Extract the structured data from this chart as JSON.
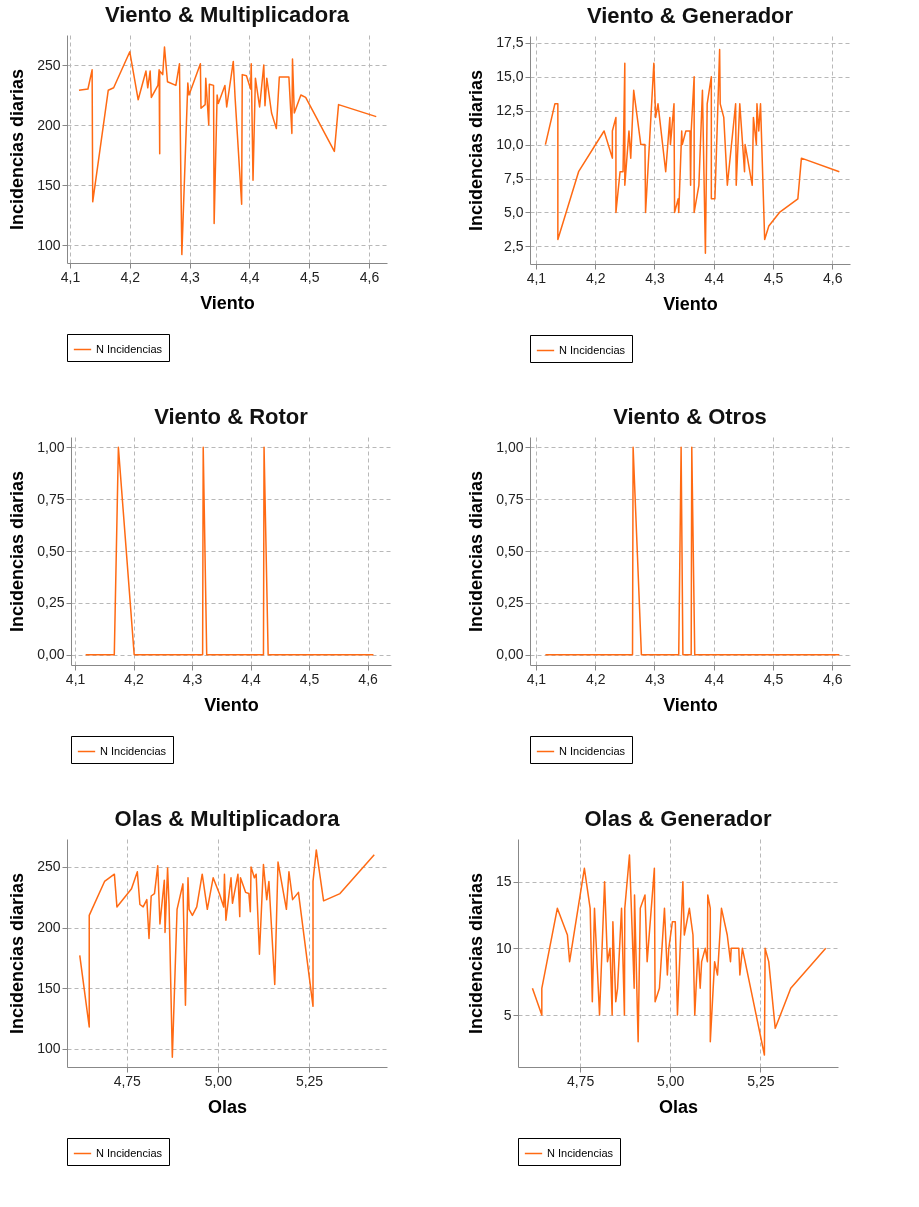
{
  "chart_data": [
    {
      "type": "line",
      "title": "Viento & Multiplicadora",
      "xlabel": "Viento",
      "ylabel": "Incidencias diarias",
      "grid": true,
      "legend": "bottom",
      "xlim": [
        4.095,
        4.63
      ],
      "ylim": [
        85,
        275
      ],
      "xticks": [
        {
          "value": 4.1,
          "label": "4,1"
        },
        {
          "value": 4.2,
          "label": "4,2"
        },
        {
          "value": 4.3,
          "label": "4,3"
        },
        {
          "value": 4.4,
          "label": "4,4"
        },
        {
          "value": 4.5,
          "label": "4,5"
        },
        {
          "value": 4.6,
          "label": "4,6"
        }
      ],
      "yticks": [
        100,
        150,
        200,
        250
      ],
      "x": [
        4.115,
        4.13,
        4.137,
        4.138,
        4.164,
        4.173,
        4.2,
        4.214,
        4.227,
        4.23,
        4.234,
        4.236,
        4.247,
        4.249,
        4.25,
        4.25,
        4.255,
        4.258,
        4.263,
        4.277,
        4.283,
        4.287,
        4.297,
        4.299,
        4.318,
        4.319,
        4.326,
        4.327,
        4.332,
        4.333,
        4.34,
        4.341,
        4.346,
        4.348,
        4.359,
        4.362,
        4.373,
        4.376,
        4.387,
        4.388,
        4.395,
        4.402,
        4.403,
        4.406,
        4.41,
        4.417,
        4.424,
        4.426,
        4.429,
        4.437,
        4.445,
        4.45,
        4.466,
        4.471,
        4.472,
        4.475,
        4.486,
        4.494,
        4.542,
        4.549,
        4.612
      ],
      "series": [
        {
          "name": "N Incidencias",
          "color": "#ff6a13",
          "values": [
            229,
            230,
            246,
            136,
            229,
            231,
            261,
            221,
            245,
            231,
            245,
            223,
            233,
            246,
            176,
            245,
            242,
            265,
            236,
            233,
            251,
            92,
            235,
            225,
            251,
            214,
            217,
            239,
            200,
            234,
            233,
            118,
            225,
            218,
            233,
            215,
            253,
            223,
            134,
            242,
            241,
            230,
            251,
            154,
            239,
            215,
            250,
            216,
            239,
            210,
            197,
            240,
            240,
            193,
            255,
            210,
            225,
            223,
            178,
            217,
            207
          ]
        }
      ]
    },
    {
      "type": "line",
      "title": "Viento & Generador",
      "xlabel": "Viento",
      "ylabel": "Incidencias diarias",
      "grid": true,
      "legend": "bottom",
      "xlim": [
        4.09,
        4.63
      ],
      "ylim": [
        1.2,
        18
      ],
      "xticks": [
        {
          "value": 4.1,
          "label": "4,1"
        },
        {
          "value": 4.2,
          "label": "4,2"
        },
        {
          "value": 4.3,
          "label": "4,3"
        },
        {
          "value": 4.4,
          "label": "4,4"
        },
        {
          "value": 4.5,
          "label": "4,5"
        },
        {
          "value": 4.6,
          "label": "4,6"
        }
      ],
      "yticks": [
        {
          "value": 2.5,
          "label": "2,5"
        },
        {
          "value": 5,
          "label": "5,0"
        },
        {
          "value": 7.5,
          "label": "7,5"
        },
        {
          "value": 10,
          "label": "10,0"
        },
        {
          "value": 12.5,
          "label": "12,5"
        },
        {
          "value": 15,
          "label": "15,0"
        },
        {
          "value": 17.5,
          "label": "17,5"
        }
      ],
      "x": [
        4.116,
        4.132,
        4.137,
        4.137,
        4.172,
        4.215,
        4.229,
        4.229,
        4.235,
        4.235,
        4.242,
        4.247,
        4.25,
        4.25,
        4.257,
        4.26,
        4.265,
        4.277,
        4.284,
        4.285,
        4.294,
        4.299,
        4.302,
        4.306,
        4.319,
        4.326,
        4.327,
        4.333,
        4.334,
        4.34,
        4.341,
        4.346,
        4.347,
        4.353,
        4.36,
        4.361,
        4.362,
        4.367,
        4.367,
        4.375,
        4.381,
        4.386,
        4.389,
        4.396,
        4.396,
        4.402,
        4.405,
        4.41,
        4.411,
        4.417,
        4.423,
        4.437,
        4.438,
        4.444,
        4.452,
        4.453,
        4.465,
        4.467,
        4.472,
        4.473,
        4.476,
        4.479,
        4.486,
        4.493,
        4.511,
        4.542,
        4.548,
        4.612
      ],
      "series": [
        {
          "name": "N Incidencias",
          "color": "#ff6a13",
          "values": [
            10,
            13,
            13,
            3,
            8,
            11,
            9,
            11,
            12,
            5,
            8,
            8,
            16,
            7,
            11,
            9,
            14,
            10,
            10,
            5,
            12,
            16,
            12,
            13,
            8,
            12,
            10,
            13,
            5,
            6,
            5,
            11,
            10,
            11,
            11,
            7,
            11,
            15,
            5,
            7,
            14,
            2,
            13,
            15,
            6,
            6,
            10,
            17,
            13,
            12,
            7,
            13,
            7,
            13,
            8,
            10,
            7,
            12,
            10,
            13,
            11,
            13,
            3,
            4,
            5,
            6,
            9,
            8
          ]
        }
      ]
    },
    {
      "type": "line",
      "title": "Viento & Rotor",
      "xlabel": "Viento",
      "ylabel": "Incidencias diarias",
      "grid": true,
      "legend": "bottom",
      "xlim": [
        4.093,
        4.64
      ],
      "ylim": [
        -0.05,
        1.05
      ],
      "xticks": [
        {
          "value": 4.1,
          "label": "4,1"
        },
        {
          "value": 4.2,
          "label": "4,2"
        },
        {
          "value": 4.3,
          "label": "4,3"
        },
        {
          "value": 4.4,
          "label": "4,4"
        },
        {
          "value": 4.5,
          "label": "4,5"
        },
        {
          "value": 4.6,
          "label": "4,6"
        }
      ],
      "yticks": [
        {
          "value": 0,
          "label": "0,00"
        },
        {
          "value": 0.25,
          "label": "0,25"
        },
        {
          "value": 0.5,
          "label": "0,50"
        },
        {
          "value": 0.75,
          "label": "0,75"
        },
        {
          "value": 1,
          "label": "1,00"
        }
      ],
      "x": [
        4.118,
        4.167,
        4.174,
        4.201,
        4.318,
        4.319,
        4.325,
        4.422,
        4.423,
        4.43,
        4.61
      ],
      "series": [
        {
          "name": "N Incidencias",
          "color": "#ff6a13",
          "values": [
            0,
            0,
            1,
            0,
            0,
            1,
            0,
            0,
            1,
            0,
            0
          ]
        }
      ]
    },
    {
      "type": "line",
      "title": "Viento & Otros",
      "xlabel": "Viento",
      "ylabel": "Incidencias diarias",
      "grid": true,
      "legend": "bottom",
      "xlim": [
        4.09,
        4.63
      ],
      "ylim": [
        -0.05,
        1.05
      ],
      "xticks": [
        {
          "value": 4.1,
          "label": "4,1"
        },
        {
          "value": 4.2,
          "label": "4,2"
        },
        {
          "value": 4.3,
          "label": "4,3"
        },
        {
          "value": 4.4,
          "label": "4,4"
        },
        {
          "value": 4.5,
          "label": "4,5"
        },
        {
          "value": 4.6,
          "label": "4,6"
        }
      ],
      "yticks": [
        {
          "value": 0,
          "label": "0,00"
        },
        {
          "value": 0.25,
          "label": "0,25"
        },
        {
          "value": 0.5,
          "label": "0,50"
        },
        {
          "value": 0.75,
          "label": "0,75"
        },
        {
          "value": 1,
          "label": "1,00"
        }
      ],
      "x": [
        4.116,
        4.263,
        4.264,
        4.278,
        4.341,
        4.345,
        4.348,
        4.362,
        4.363,
        4.368,
        4.612
      ],
      "series": [
        {
          "name": "N Incidencias",
          "color": "#ff6a13",
          "values": [
            0,
            0,
            1,
            0,
            0,
            1,
            0,
            0,
            1,
            0,
            0
          ]
        }
      ]
    },
    {
      "type": "line",
      "title": "Olas & Multiplicadora",
      "xlabel": "Olas",
      "ylabel": "Incidencias diarias",
      "grid": true,
      "legend": "bottom",
      "xlim": [
        4.586,
        5.464
      ],
      "ylim": [
        85,
        273
      ],
      "xticks": [
        {
          "value": 4.75,
          "label": "4,75"
        },
        {
          "value": 5,
          "label": "5,00"
        },
        {
          "value": 5.25,
          "label": "5,25"
        }
      ],
      "yticks": [
        100,
        150,
        200,
        250
      ],
      "x": [
        4.621,
        4.647,
        4.647,
        4.689,
        4.716,
        4.723,
        4.763,
        4.779,
        4.786,
        4.795,
        4.805,
        4.811,
        4.817,
        4.826,
        4.835,
        4.841,
        4.853,
        4.855,
        4.862,
        4.866,
        4.875,
        4.888,
        4.904,
        4.911,
        4.918,
        4.921,
        4.93,
        4.942,
        4.957,
        4.971,
        4.987,
        5.004,
        5.016,
        5.018,
        5.022,
        5.036,
        5.04,
        5.055,
        5.06,
        5.062,
        5.076,
        5.085,
        5.089,
        5.091,
        5.1,
        5.105,
        5.114,
        5.125,
        5.134,
        5.14,
        5.156,
        5.165,
        5.188,
        5.195,
        5.205,
        5.221,
        5.261,
        5.261,
        5.27,
        5.29,
        5.335,
        5.429
      ],
      "series": [
        {
          "name": "N Incidencias",
          "color": "#ff6a13",
          "values": [
            177,
            118,
            210,
            238,
            244,
            217,
            232,
            246,
            219,
            217,
            223,
            191,
            226,
            228,
            251,
            203,
            239,
            196,
            249,
            219,
            93,
            215,
            236,
            136,
            241,
            215,
            210,
            217,
            244,
            215,
            241,
            228,
            217,
            244,
            206,
            241,
            220,
            244,
            209,
            241,
            229,
            228,
            213,
            250,
            241,
            244,
            178,
            252,
            223,
            238,
            153,
            254,
            215,
            246,
            223,
            229,
            135,
            238,
            264,
            222,
            228,
            260
          ]
        }
      ]
    },
    {
      "type": "line",
      "title": "Olas & Generador",
      "xlabel": "Olas",
      "ylabel": "Incidencias diarias",
      "grid": true,
      "legend": "bottom",
      "xlim": [
        4.578,
        5.465
      ],
      "ylim": [
        1.1,
        18.2
      ],
      "xticks": [
        {
          "value": 4.75,
          "label": "4,75"
        },
        {
          "value": 5,
          "label": "5,00"
        },
        {
          "value": 5.25,
          "label": "5,25"
        }
      ],
      "yticks": [
        5,
        10,
        15
      ],
      "x": [
        4.618,
        4.644,
        4.644,
        4.687,
        4.715,
        4.721,
        4.762,
        4.778,
        4.784,
        4.79,
        4.804,
        4.818,
        4.826,
        4.833,
        4.839,
        4.841,
        4.849,
        4.854,
        4.865,
        4.873,
        4.874,
        4.887,
        4.9,
        4.901,
        4.911,
        4.917,
        4.93,
        4.936,
        4.956,
        4.958,
        4.97,
        4.984,
        4.992,
        4.996,
        5.006,
        5.014,
        5.02,
        5.035,
        5.039,
        5.053,
        5.063,
        5.068,
        5.077,
        5.083,
        5.087,
        5.097,
        5.103,
        5.104,
        5.111,
        5.111,
        5.123,
        5.131,
        5.142,
        5.158,
        5.167,
        5.169,
        5.19,
        5.193,
        5.2,
        5.261,
        5.263,
        5.273,
        5.291,
        5.334,
        5.431
      ],
      "series": [
        {
          "name": "N Incidencias",
          "color": "#ff6a13",
          "values": [
            7,
            5,
            7,
            13,
            11,
            9,
            16,
            13,
            6,
            13,
            5,
            15,
            9,
            10,
            5,
            12,
            6,
            7,
            13,
            5,
            13,
            17,
            7,
            14,
            3,
            13,
            14,
            9,
            16,
            6,
            7,
            13,
            8,
            10,
            12,
            12,
            5,
            15,
            11,
            13,
            11,
            5,
            10,
            7,
            9,
            10,
            9,
            14,
            13,
            3,
            9,
            8,
            13,
            11,
            9,
            10,
            10,
            8,
            10,
            2,
            10,
            9,
            4,
            7,
            10
          ]
        }
      ]
    }
  ]
}
